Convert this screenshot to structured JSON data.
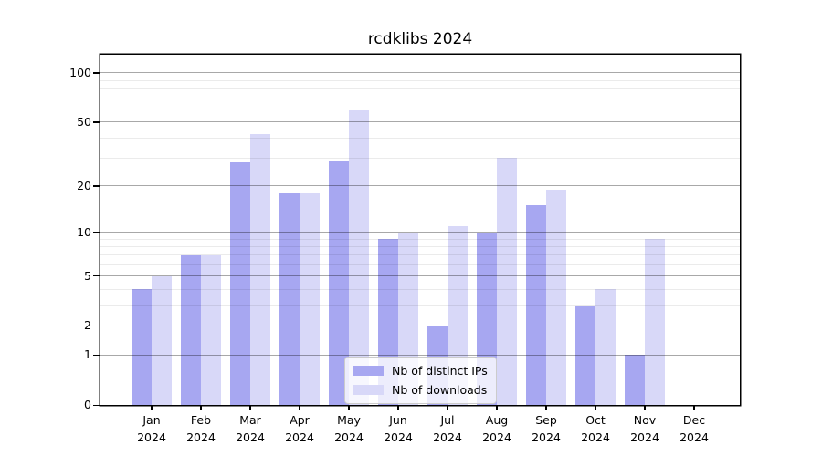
{
  "chart_data": {
    "type": "bar",
    "title": "rcdklibs 2024",
    "categories": [
      "Jan",
      "Feb",
      "Mar",
      "Apr",
      "May",
      "Jun",
      "Jul",
      "Aug",
      "Sep",
      "Oct",
      "Nov",
      "Dec"
    ],
    "year_label": "2024",
    "series": [
      {
        "name": "Nb of distinct IPs",
        "color": "#a7a7f1",
        "values": [
          4,
          7,
          28,
          18,
          29,
          9,
          2,
          10,
          15,
          3,
          1,
          0
        ]
      },
      {
        "name": "Nb of downloads",
        "color": "#d8d8f8",
        "values": [
          5,
          7,
          42,
          18,
          59,
          10,
          11,
          30,
          19,
          4,
          9,
          0
        ]
      }
    ],
    "xlabel": "",
    "ylabel": "",
    "yscale": "log1p",
    "ylim": [
      0,
      129
    ],
    "yticks": [
      0,
      1,
      2,
      5,
      10,
      20,
      50,
      100
    ],
    "yticks_minor": [
      3,
      4,
      6,
      7,
      8,
      9,
      30,
      40,
      60,
      70,
      80,
      90
    ],
    "grid": "on",
    "legend_position": "inside-bottom-center",
    "colors": {
      "grid_major": "rgba(0,0,0,0.34)",
      "grid_minor": "rgba(0,0,0,0.08)",
      "axis": "#000000",
      "text": "#000000",
      "background": "#ffffff",
      "legend_bg": "rgba(255,255,255,0.8)",
      "legend_border": "#cccccc"
    }
  }
}
